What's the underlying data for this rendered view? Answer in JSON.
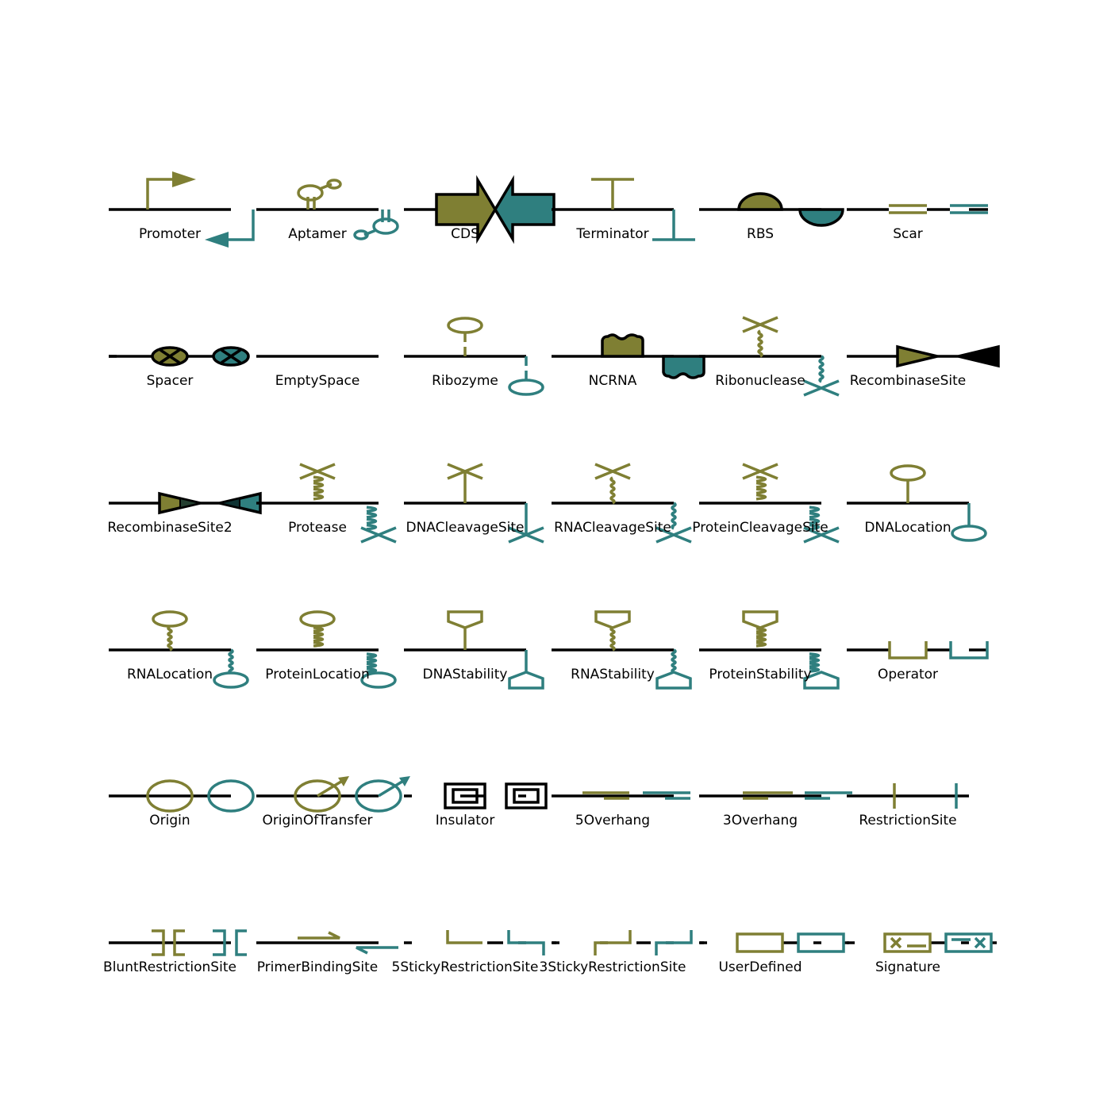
{
  "colors": {
    "forward": "#7f7f33",
    "reverse": "#2f7f7f",
    "backbone": "#000000"
  },
  "glyphs": [
    {
      "name": "Promoter"
    },
    {
      "name": "Aptamer"
    },
    {
      "name": "CDS"
    },
    {
      "name": "Terminator"
    },
    {
      "name": "RBS"
    },
    {
      "name": "Scar"
    },
    {
      "name": "Spacer"
    },
    {
      "name": "EmptySpace"
    },
    {
      "name": "Ribozyme"
    },
    {
      "name": "NCRNA"
    },
    {
      "name": "Ribonuclease"
    },
    {
      "name": "RecombinaseSite"
    },
    {
      "name": "RecombinaseSite2"
    },
    {
      "name": "Protease"
    },
    {
      "name": "DNACleavageSite"
    },
    {
      "name": "RNACleavageSite"
    },
    {
      "name": "ProteinCleavageSite"
    },
    {
      "name": "DNALocation"
    },
    {
      "name": "RNALocation"
    },
    {
      "name": "ProteinLocation"
    },
    {
      "name": "DNAStability"
    },
    {
      "name": "RNAStability"
    },
    {
      "name": "ProteinStability"
    },
    {
      "name": "Operator"
    },
    {
      "name": "Origin"
    },
    {
      "name": "OriginOfTransfer"
    },
    {
      "name": "Insulator"
    },
    {
      "name": "5Overhang"
    },
    {
      "name": "3Overhang"
    },
    {
      "name": "RestrictionSite"
    },
    {
      "name": "BluntRestrictionSite"
    },
    {
      "name": "PrimerBindingSite"
    },
    {
      "name": "5StickyRestrictionSite"
    },
    {
      "name": "3StickyRestrictionSite"
    },
    {
      "name": "UserDefined"
    },
    {
      "name": "Signature"
    }
  ]
}
